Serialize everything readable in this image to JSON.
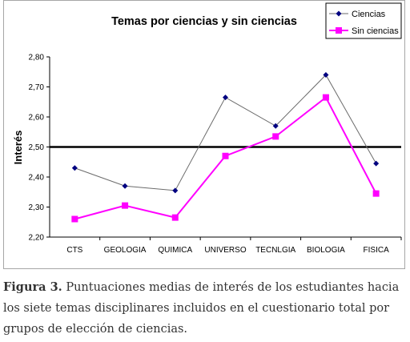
{
  "chart_data": {
    "type": "line",
    "title": "Temas por ciencias y sin ciencias",
    "ylabel": "Interés",
    "xlabel": "",
    "categories": [
      "CTS",
      "GEOLOGIA",
      "QUIMICA",
      "UNIVERSO",
      "TECNLGIA",
      "BIOLOGIA",
      "FISICA"
    ],
    "ylim": [
      2.2,
      2.8
    ],
    "yticks": [
      "2,20",
      "2,30",
      "2,40",
      "2,50",
      "2,60",
      "2,70",
      "2,80"
    ],
    "reference_line": 2.5,
    "grid": false,
    "legend_position": "top-right",
    "series": [
      {
        "name": "Ciencias",
        "values": [
          2.43,
          2.37,
          2.355,
          2.665,
          2.57,
          2.74,
          2.445
        ],
        "color": "#6b6b6b",
        "marker": "diamond",
        "marker_color": "#000080"
      },
      {
        "name": "Sin ciencias",
        "values": [
          2.26,
          2.305,
          2.265,
          2.47,
          2.535,
          2.665,
          2.345
        ],
        "color": "#ff00ff",
        "marker": "square",
        "marker_color": "#ff00ff"
      }
    ]
  },
  "caption": {
    "lead": "Figura 3.",
    "text": "Puntuaciones medias de interés de los estudiantes hacia los siete temas disciplinares incluidos en el cuestionario total por grupos de elección de ciencias."
  }
}
